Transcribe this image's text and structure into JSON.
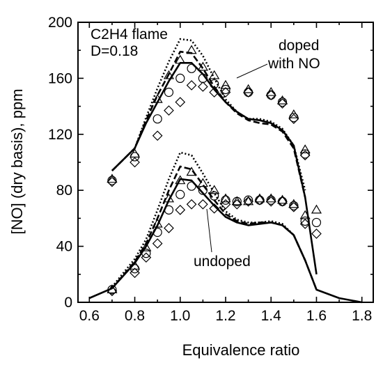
{
  "chart_data": {
    "type": "line",
    "title": "",
    "xlabel": "Equivalence ratio",
    "ylabel": "[NO] (dry basis), ppm",
    "xlim": [
      0.55,
      1.85
    ],
    "ylim": [
      0,
      200
    ],
    "x_ticks": [
      "0.6",
      "0.8",
      "1.0",
      "1.2",
      "1.4",
      "1.6",
      "1.8"
    ],
    "y_ticks": [
      "0",
      "40",
      "80",
      "120",
      "160",
      "200"
    ],
    "annotations": {
      "flame": "C2H4 flame",
      "dilution": "D=0.18",
      "doped_line1": "doped",
      "doped_line2": "with NO",
      "undoped": "undoped"
    },
    "series": [
      {
        "group": "doped",
        "style": "solid",
        "points": [
          [
            0.7,
            94
          ],
          [
            0.8,
            110
          ],
          [
            0.85,
            128
          ],
          [
            0.9,
            143
          ],
          [
            0.95,
            158
          ],
          [
            1.0,
            171
          ],
          [
            1.05,
            171
          ],
          [
            1.1,
            163
          ],
          [
            1.15,
            152
          ],
          [
            1.2,
            143
          ],
          [
            1.25,
            136
          ],
          [
            1.3,
            131
          ],
          [
            1.35,
            130
          ],
          [
            1.4,
            128
          ],
          [
            1.45,
            123
          ],
          [
            1.5,
            112
          ],
          [
            1.55,
            75
          ],
          [
            1.6,
            20
          ]
        ]
      },
      {
        "group": "doped",
        "style": "dashed",
        "points": [
          [
            0.7,
            94
          ],
          [
            0.8,
            110
          ],
          [
            0.85,
            130
          ],
          [
            0.9,
            148
          ],
          [
            0.95,
            163
          ],
          [
            1.0,
            179
          ],
          [
            1.05,
            178
          ],
          [
            1.1,
            167
          ],
          [
            1.15,
            154
          ],
          [
            1.2,
            143
          ],
          [
            1.25,
            135
          ],
          [
            1.3,
            130
          ],
          [
            1.35,
            128
          ],
          [
            1.4,
            127
          ],
          [
            1.45,
            122
          ],
          [
            1.5,
            110
          ],
          [
            1.55,
            75
          ]
        ]
      },
      {
        "group": "doped",
        "style": "dotted",
        "points": [
          [
            0.7,
            94
          ],
          [
            0.8,
            110
          ],
          [
            0.85,
            132
          ],
          [
            0.9,
            153
          ],
          [
            0.95,
            172
          ],
          [
            1.0,
            188
          ],
          [
            1.05,
            187
          ],
          [
            1.1,
            176
          ],
          [
            1.15,
            160
          ],
          [
            1.2,
            145
          ],
          [
            1.25,
            136
          ],
          [
            1.3,
            131
          ],
          [
            1.35,
            131
          ],
          [
            1.4,
            129
          ],
          [
            1.45,
            124
          ],
          [
            1.5,
            112
          ],
          [
            1.55,
            80
          ]
        ]
      },
      {
        "group": "undoped",
        "style": "solid",
        "points": [
          [
            0.6,
            3
          ],
          [
            0.7,
            10
          ],
          [
            0.8,
            28
          ],
          [
            0.85,
            40
          ],
          [
            0.9,
            55
          ],
          [
            0.95,
            73
          ],
          [
            1.0,
            88
          ],
          [
            1.05,
            87
          ],
          [
            1.1,
            78
          ],
          [
            1.15,
            69
          ],
          [
            1.2,
            61
          ],
          [
            1.25,
            57
          ],
          [
            1.3,
            55
          ],
          [
            1.35,
            56
          ],
          [
            1.4,
            57
          ],
          [
            1.45,
            55
          ],
          [
            1.5,
            48
          ],
          [
            1.55,
            30
          ],
          [
            1.6,
            9
          ],
          [
            1.7,
            3
          ],
          [
            1.8,
            0
          ]
        ]
      },
      {
        "group": "undoped",
        "style": "dashed",
        "points": [
          [
            0.7,
            10
          ],
          [
            0.8,
            29
          ],
          [
            0.85,
            42
          ],
          [
            0.9,
            60
          ],
          [
            0.95,
            80
          ],
          [
            1.0,
            97
          ],
          [
            1.05,
            95
          ],
          [
            1.1,
            84
          ],
          [
            1.15,
            73
          ],
          [
            1.2,
            63
          ],
          [
            1.25,
            58
          ],
          [
            1.3,
            56
          ],
          [
            1.35,
            57
          ],
          [
            1.4,
            57
          ],
          [
            1.45,
            55
          ],
          [
            1.5,
            48
          ],
          [
            1.55,
            30
          ],
          [
            1.6,
            9
          ]
        ]
      },
      {
        "group": "undoped",
        "style": "dotted",
        "points": [
          [
            0.7,
            11
          ],
          [
            0.8,
            31
          ],
          [
            0.85,
            45
          ],
          [
            0.9,
            66
          ],
          [
            0.95,
            88
          ],
          [
            1.0,
            107
          ],
          [
            1.05,
            105
          ],
          [
            1.1,
            92
          ],
          [
            1.15,
            78
          ],
          [
            1.2,
            65
          ],
          [
            1.25,
            59
          ],
          [
            1.3,
            57
          ],
          [
            1.35,
            57
          ],
          [
            1.4,
            58
          ],
          [
            1.45,
            56
          ],
          [
            1.5,
            48
          ],
          [
            1.55,
            30
          ]
        ]
      }
    ],
    "markers": [
      {
        "shape": "triangle",
        "group": "doped",
        "points": [
          [
            0.7,
            88
          ],
          [
            0.8,
            106
          ],
          [
            0.9,
            145
          ],
          [
            0.95,
            162
          ],
          [
            1.0,
            173
          ],
          [
            1.05,
            180
          ],
          [
            1.1,
            168
          ],
          [
            1.15,
            162
          ],
          [
            1.2,
            155
          ],
          [
            1.3,
            152
          ],
          [
            1.4,
            150
          ],
          [
            1.45,
            144
          ],
          [
            1.5,
            134
          ],
          [
            1.55,
            109
          ]
        ]
      },
      {
        "shape": "circle",
        "group": "doped",
        "points": [
          [
            0.7,
            87
          ],
          [
            0.8,
            104
          ],
          [
            0.9,
            131
          ],
          [
            0.95,
            150
          ],
          [
            1.0,
            160
          ],
          [
            1.05,
            167
          ],
          [
            1.1,
            160
          ],
          [
            1.15,
            156
          ],
          [
            1.2,
            152
          ],
          [
            1.3,
            150
          ],
          [
            1.4,
            148
          ],
          [
            1.45,
            143
          ],
          [
            1.5,
            132
          ],
          [
            1.55,
            106
          ]
        ]
      },
      {
        "shape": "diamond",
        "group": "doped",
        "points": [
          [
            0.7,
            86
          ],
          [
            0.8,
            100
          ],
          [
            0.9,
            119
          ],
          [
            0.95,
            137
          ],
          [
            1.0,
            143
          ],
          [
            1.05,
            155
          ],
          [
            1.1,
            154
          ],
          [
            1.15,
            150
          ],
          [
            1.2,
            150
          ],
          [
            1.3,
            150
          ],
          [
            1.4,
            148
          ],
          [
            1.45,
            142
          ],
          [
            1.5,
            131
          ],
          [
            1.55,
            105
          ]
        ]
      },
      {
        "shape": "triangle",
        "group": "undoped",
        "points": [
          [
            0.7,
            9
          ],
          [
            0.8,
            26
          ],
          [
            0.85,
            39
          ],
          [
            0.9,
            56
          ],
          [
            0.95,
            74
          ],
          [
            1.0,
            87
          ],
          [
            1.05,
            93
          ],
          [
            1.1,
            85
          ],
          [
            1.15,
            80
          ],
          [
            1.2,
            74
          ],
          [
            1.25,
            72
          ],
          [
            1.3,
            72
          ],
          [
            1.35,
            74
          ],
          [
            1.4,
            74
          ],
          [
            1.45,
            73
          ],
          [
            1.5,
            70
          ],
          [
            1.55,
            62
          ],
          [
            1.6,
            66
          ]
        ]
      },
      {
        "shape": "circle",
        "group": "undoped",
        "points": [
          [
            0.7,
            9
          ],
          [
            0.8,
            24
          ],
          [
            0.85,
            35
          ],
          [
            0.9,
            50
          ],
          [
            0.95,
            66
          ],
          [
            1.0,
            77
          ],
          [
            1.05,
            83
          ],
          [
            1.1,
            80
          ],
          [
            1.15,
            76
          ],
          [
            1.2,
            73
          ],
          [
            1.25,
            72
          ],
          [
            1.3,
            73
          ],
          [
            1.35,
            73
          ],
          [
            1.4,
            73
          ],
          [
            1.45,
            72
          ],
          [
            1.5,
            69
          ],
          [
            1.55,
            58
          ],
          [
            1.6,
            57
          ]
        ]
      },
      {
        "shape": "diamond",
        "group": "undoped",
        "points": [
          [
            0.7,
            8
          ],
          [
            0.8,
            21
          ],
          [
            0.85,
            32
          ],
          [
            0.9,
            42
          ],
          [
            0.95,
            53
          ],
          [
            1.0,
            66
          ],
          [
            1.05,
            70
          ],
          [
            1.1,
            70
          ],
          [
            1.15,
            67
          ],
          [
            1.2,
            70
          ],
          [
            1.25,
            70
          ],
          [
            1.3,
            72
          ],
          [
            1.35,
            73
          ],
          [
            1.4,
            72
          ],
          [
            1.45,
            72
          ],
          [
            1.5,
            68
          ],
          [
            1.55,
            56
          ],
          [
            1.6,
            49
          ]
        ]
      }
    ]
  }
}
